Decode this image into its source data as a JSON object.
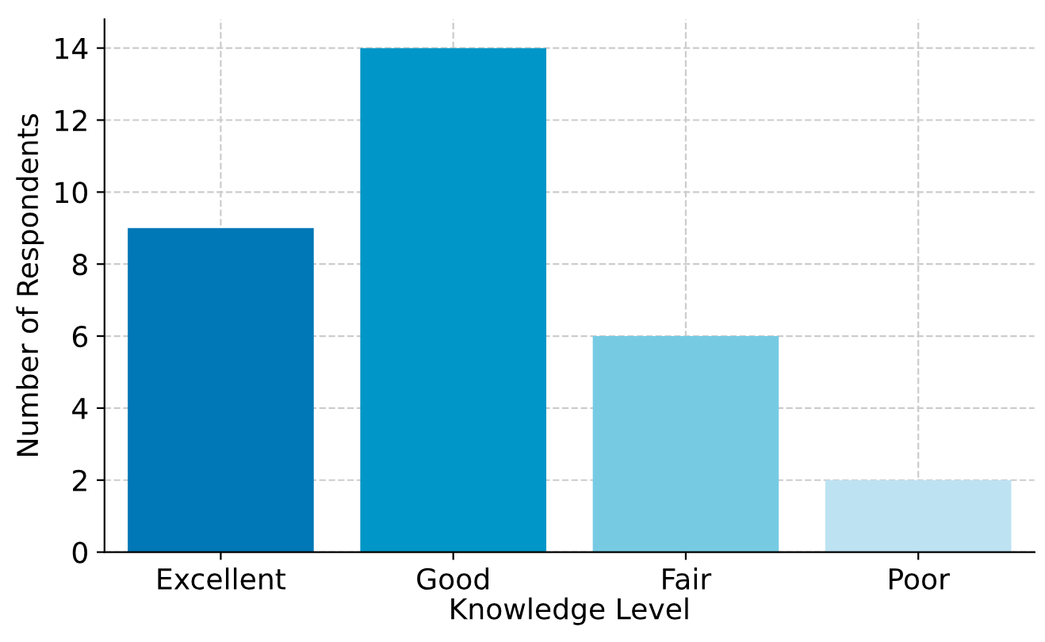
{
  "chart_data": {
    "type": "bar",
    "xlabel": "Knowledge Level",
    "ylabel": "Number of Respondents",
    "categories": [
      "Excellent",
      "Good",
      "Fair",
      "Poor"
    ],
    "values": [
      9,
      14,
      6,
      2
    ],
    "colors": [
      "#0077b6",
      "#0096c7",
      "#76cbe3",
      "#bde3f2"
    ],
    "ylim": [
      0,
      14.8
    ],
    "yticks": [
      0,
      2,
      4,
      6,
      8,
      10,
      12,
      14
    ],
    "grid": true
  }
}
